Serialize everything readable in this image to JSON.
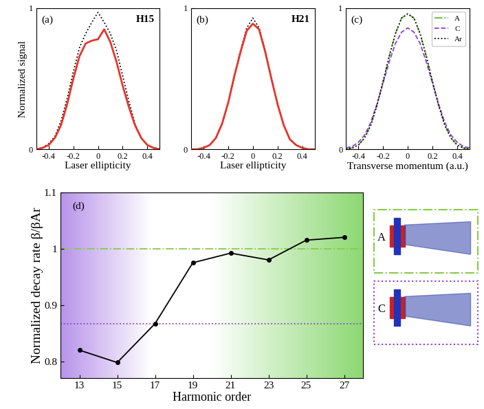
{
  "chart_data": [
    {
      "type": "line",
      "panel_label": "(a)",
      "annotation": "H15",
      "x_label": "Laser ellipticity",
      "y_label": "Normalized signal",
      "x": [
        -0.5,
        -0.45,
        -0.4,
        -0.35,
        -0.3,
        -0.25,
        -0.2,
        -0.15,
        -0.1,
        -0.05,
        0,
        0.05,
        0.1,
        0.15,
        0.2,
        0.25,
        0.3,
        0.35,
        0.4,
        0.45,
        0.5
      ],
      "series": [
        {
          "color": "#000000",
          "line_style": "dotted",
          "values": [
            0,
            0.01,
            0.04,
            0.09,
            0.2,
            0.36,
            0.55,
            0.72,
            0.82,
            0.9,
            0.97,
            0.9,
            0.82,
            0.7,
            0.52,
            0.34,
            0.18,
            0.08,
            0.03,
            0.01,
            0
          ]
        },
        {
          "color": "#e8332a",
          "line_style": "solid",
          "values": [
            0,
            0.01,
            0.03,
            0.08,
            0.17,
            0.32,
            0.5,
            0.66,
            0.75,
            0.77,
            0.78,
            0.85,
            0.76,
            0.62,
            0.45,
            0.3,
            0.17,
            0.08,
            0.03,
            0.01,
            0
          ]
        }
      ],
      "xlim": [
        -0.5,
        0.5
      ],
      "xticks": [
        -0.4,
        -0.2,
        0,
        0.2,
        0.4
      ],
      "ylim": [
        0,
        1
      ],
      "yticks": [
        0,
        1
      ]
    },
    {
      "type": "line",
      "panel_label": "(b)",
      "annotation": "H21",
      "x_label": "Laser ellipticity",
      "x": [
        -0.5,
        -0.45,
        -0.4,
        -0.35,
        -0.3,
        -0.25,
        -0.2,
        -0.15,
        -0.1,
        -0.05,
        0,
        0.05,
        0.1,
        0.15,
        0.2,
        0.25,
        0.3,
        0.35,
        0.4,
        0.45,
        0.5
      ],
      "series": [
        {
          "color": "#000000",
          "line_style": "dotted",
          "values": [
            0,
            0,
            0.01,
            0.03,
            0.08,
            0.18,
            0.33,
            0.52,
            0.7,
            0.86,
            0.93,
            0.86,
            0.7,
            0.5,
            0.32,
            0.17,
            0.07,
            0.03,
            0.01,
            0,
            0
          ]
        },
        {
          "color": "#e8332a",
          "line_style": "solid",
          "values": [
            0,
            0,
            0.01,
            0.03,
            0.08,
            0.18,
            0.33,
            0.52,
            0.69,
            0.84,
            0.89,
            0.85,
            0.69,
            0.5,
            0.32,
            0.17,
            0.07,
            0.03,
            0.01,
            0,
            0
          ]
        }
      ],
      "xlim": [
        -0.5,
        0.5
      ],
      "xticks": [
        -0.4,
        -0.2,
        0,
        0.2,
        0.4
      ],
      "ylim": [
        0,
        1
      ],
      "yticks": [
        0,
        1
      ]
    },
    {
      "type": "line",
      "panel_label": "(c)",
      "x_label": "Transverse momentum (a.u.)",
      "x": [
        -0.5,
        -0.45,
        -0.4,
        -0.35,
        -0.3,
        -0.25,
        -0.2,
        -0.15,
        -0.1,
        -0.05,
        0,
        0.05,
        0.1,
        0.15,
        0.2,
        0.25,
        0.3,
        0.35,
        0.4,
        0.45,
        0.5
      ],
      "series": [
        {
          "name": "A",
          "color": "#66bb33",
          "line_style": "dashdot",
          "values": [
            0,
            0.01,
            0.03,
            0.08,
            0.17,
            0.31,
            0.48,
            0.66,
            0.82,
            0.93,
            0.96,
            0.93,
            0.82,
            0.66,
            0.48,
            0.31,
            0.17,
            0.08,
            0.03,
            0.01,
            0
          ]
        },
        {
          "name": "C",
          "color": "#8a3fd1",
          "line_style": "dashed",
          "values": [
            0.01,
            0.02,
            0.05,
            0.1,
            0.19,
            0.32,
            0.47,
            0.62,
            0.75,
            0.83,
            0.86,
            0.83,
            0.75,
            0.62,
            0.47,
            0.32,
            0.19,
            0.1,
            0.05,
            0.02,
            0.01
          ]
        },
        {
          "name": "Ar",
          "color": "#000000",
          "line_style": "dotted",
          "values": [
            0,
            0.01,
            0.03,
            0.08,
            0.17,
            0.31,
            0.48,
            0.66,
            0.82,
            0.93,
            0.96,
            0.93,
            0.82,
            0.66,
            0.48,
            0.31,
            0.17,
            0.08,
            0.03,
            0.01,
            0
          ]
        }
      ],
      "legend": "upper right",
      "xlim": [
        -0.5,
        0.5
      ],
      "xticks": [
        -0.4,
        -0.2,
        0,
        0.2,
        0.4
      ],
      "ylim": [
        0,
        1
      ],
      "yticks": [
        0,
        1
      ]
    },
    {
      "type": "line",
      "panel_label": "(d)",
      "x_label": "Harmonic order",
      "y_label": "Normalized decay rate β/βAr",
      "x": [
        13,
        15,
        17,
        19,
        21,
        23,
        25,
        27
      ],
      "series": [
        {
          "color": "#000000",
          "marker": "o",
          "line_style": "solid",
          "values": [
            0.82,
            0.798,
            0.867,
            0.975,
            0.992,
            0.98,
            1.015,
            1.02
          ]
        }
      ],
      "reference_lines": [
        {
          "label": "A",
          "value": 1.0,
          "color": "#88cc44",
          "line_style": "dashdot"
        },
        {
          "label": "C",
          "value": 0.867,
          "color": "#8a3fd1",
          "line_style": "dotted"
        }
      ],
      "xlim": [
        12,
        28
      ],
      "xticks": [
        13,
        15,
        17,
        19,
        21,
        23,
        25,
        27
      ],
      "ylim": [
        0.77,
        1.1
      ],
      "yticks": [
        0.8,
        0.9,
        1,
        1.1
      ]
    }
  ]
}
